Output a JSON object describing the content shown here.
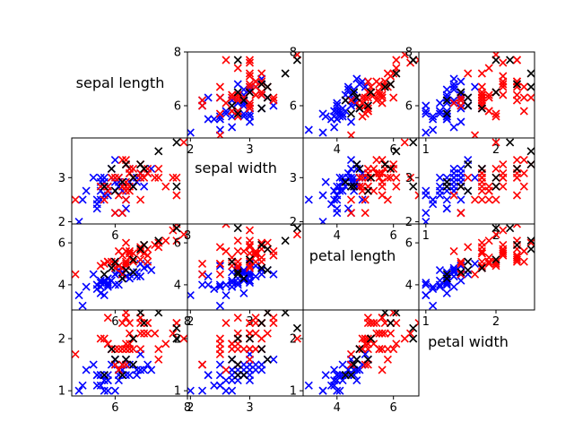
{
  "chart_data": {
    "type": "scatter",
    "layout": "scatter-matrix",
    "variables": [
      "sepal length",
      "sepal width",
      "petal length",
      "petal width"
    ],
    "marker": "x",
    "colors": {
      "group_a": "#0000ff",
      "group_b": "#ff0000",
      "group_c": "#000000"
    },
    "axes": {
      "sepal length": {
        "range": [
          4.8,
          8.0
        ],
        "ticks": [
          6,
          8
        ],
        "tick_labels": [
          "6",
          "8"
        ]
      },
      "sepal width": {
        "range": [
          1.95,
          3.9
        ],
        "ticks": [
          2,
          3
        ],
        "tick_labels": [
          "2",
          "3"
        ]
      },
      "petal length": {
        "range": [
          2.8,
          6.9
        ],
        "ticks": [
          4,
          6
        ],
        "tick_labels": [
          "4",
          "6"
        ]
      },
      "petal width": {
        "range": [
          0.9,
          2.55
        ],
        "ticks": [
          1,
          2
        ],
        "tick_labels": [
          "1",
          "2"
        ]
      }
    },
    "points": {
      "group_a": [
        [
          5.0,
          2.0,
          3.5,
          1.0
        ],
        [
          5.2,
          2.7,
          3.9,
          1.4
        ],
        [
          5.4,
          3.0,
          4.5,
          1.5
        ],
        [
          5.5,
          2.3,
          4.0,
          1.3
        ],
        [
          5.5,
          2.4,
          3.8,
          1.1
        ],
        [
          5.5,
          2.5,
          4.0,
          1.3
        ],
        [
          5.6,
          2.5,
          3.9,
          1.1
        ],
        [
          5.6,
          2.9,
          3.6,
          1.3
        ],
        [
          5.6,
          3.0,
          4.1,
          1.3
        ],
        [
          5.7,
          2.6,
          3.5,
          1.0
        ],
        [
          5.7,
          2.8,
          4.1,
          1.3
        ],
        [
          5.7,
          2.9,
          4.2,
          1.3
        ],
        [
          5.7,
          3.0,
          4.2,
          1.2
        ],
        [
          5.8,
          2.6,
          4.0,
          1.2
        ],
        [
          5.8,
          2.7,
          3.9,
          1.2
        ],
        [
          5.8,
          2.7,
          4.1,
          1.0
        ],
        [
          5.9,
          3.0,
          4.2,
          1.5
        ],
        [
          5.9,
          3.2,
          4.8,
          1.8
        ],
        [
          6.0,
          2.2,
          4.0,
          1.0
        ],
        [
          6.0,
          2.7,
          5.1,
          1.6
        ],
        [
          6.0,
          2.9,
          4.5,
          1.5
        ],
        [
          6.0,
          3.4,
          4.5,
          1.6
        ],
        [
          6.1,
          2.8,
          4.0,
          1.3
        ],
        [
          6.1,
          2.8,
          4.7,
          1.2
        ],
        [
          6.1,
          2.9,
          4.7,
          1.4
        ],
        [
          6.1,
          3.0,
          4.6,
          1.4
        ],
        [
          6.2,
          2.2,
          4.5,
          1.5
        ],
        [
          6.2,
          2.9,
          4.3,
          1.3
        ],
        [
          6.3,
          2.3,
          4.4,
          1.3
        ],
        [
          6.3,
          2.5,
          4.9,
          1.5
        ],
        [
          6.3,
          3.3,
          4.7,
          1.6
        ],
        [
          6.4,
          2.9,
          4.3,
          1.3
        ],
        [
          6.4,
          3.2,
          4.5,
          1.5
        ],
        [
          6.5,
          2.8,
          4.6,
          1.5
        ],
        [
          6.6,
          2.9,
          4.6,
          1.3
        ],
        [
          6.6,
          3.0,
          4.4,
          1.4
        ],
        [
          6.7,
          3.0,
          5.0,
          1.7
        ],
        [
          6.7,
          3.1,
          4.4,
          1.4
        ],
        [
          6.8,
          2.8,
          4.8,
          1.4
        ],
        [
          6.9,
          3.1,
          4.9,
          1.5
        ],
        [
          7.0,
          3.2,
          4.7,
          1.4
        ],
        [
          5.1,
          2.5,
          3.0,
          1.1
        ],
        [
          5.6,
          2.7,
          4.2,
          1.3
        ],
        [
          5.8,
          2.8,
          4.3,
          1.3
        ],
        [
          6.2,
          2.7,
          4.6,
          1.4
        ]
      ],
      "group_b": [
        [
          4.9,
          2.5,
          4.5,
          1.7
        ],
        [
          5.6,
          2.8,
          4.9,
          2.0
        ],
        [
          5.7,
          2.5,
          5.0,
          2.0
        ],
        [
          5.8,
          2.7,
          5.1,
          1.9
        ],
        [
          5.8,
          2.8,
          5.1,
          2.4
        ],
        [
          6.0,
          2.2,
          5.0,
          1.5
        ],
        [
          6.0,
          3.0,
          4.8,
          1.8
        ],
        [
          6.1,
          2.6,
          5.6,
          1.4
        ],
        [
          6.1,
          3.0,
          4.9,
          1.8
        ],
        [
          6.2,
          2.8,
          4.8,
          1.8
        ],
        [
          6.2,
          3.4,
          5.4,
          2.3
        ],
        [
          6.3,
          2.5,
          5.0,
          1.9
        ],
        [
          6.3,
          2.7,
          4.9,
          1.8
        ],
        [
          6.3,
          2.8,
          5.1,
          1.5
        ],
        [
          6.3,
          2.9,
          5.6,
          1.8
        ],
        [
          6.3,
          3.3,
          6.0,
          2.5
        ],
        [
          6.4,
          2.7,
          5.3,
          1.9
        ],
        [
          6.4,
          2.8,
          5.6,
          2.1
        ],
        [
          6.4,
          3.1,
          5.5,
          1.8
        ],
        [
          6.4,
          3.2,
          5.3,
          2.3
        ],
        [
          6.5,
          3.0,
          5.2,
          2.0
        ],
        [
          6.5,
          3.0,
          5.5,
          1.8
        ],
        [
          6.5,
          3.2,
          5.1,
          2.0
        ],
        [
          6.7,
          2.5,
          5.8,
          1.8
        ],
        [
          6.7,
          3.0,
          5.2,
          2.3
        ],
        [
          6.7,
          3.1,
          5.6,
          2.4
        ],
        [
          6.8,
          3.0,
          5.5,
          2.1
        ],
        [
          6.8,
          3.2,
          5.9,
          2.3
        ],
        [
          6.9,
          3.1,
          5.1,
          2.3
        ],
        [
          6.9,
          3.2,
          5.7,
          2.3
        ],
        [
          7.1,
          3.0,
          5.9,
          2.1
        ],
        [
          7.2,
          3.0,
          5.8,
          1.6
        ],
        [
          7.2,
          3.2,
          6.0,
          1.8
        ],
        [
          7.4,
          2.8,
          6.1,
          1.9
        ],
        [
          7.6,
          3.0,
          6.6,
          2.1
        ],
        [
          7.7,
          2.6,
          6.9,
          2.3
        ],
        [
          7.7,
          3.0,
          6.1,
          2.3
        ],
        [
          7.9,
          3.8,
          6.4,
          2.0
        ],
        [
          5.8,
          2.7,
          5.1,
          1.9
        ],
        [
          5.9,
          3.0,
          5.1,
          1.8
        ],
        [
          6.2,
          2.2,
          4.5,
          1.5
        ],
        [
          6.7,
          3.3,
          5.7,
          2.1
        ],
        [
          6.3,
          3.4,
          5.6,
          2.4
        ],
        [
          6.4,
          3.1,
          5.5,
          1.8
        ],
        [
          6.9,
          3.1,
          5.4,
          2.1
        ]
      ],
      "group_c": [
        [
          5.9,
          3.2,
          4.8,
          1.8
        ],
        [
          6.0,
          2.7,
          5.1,
          1.6
        ],
        [
          6.3,
          3.3,
          4.7,
          1.6
        ],
        [
          6.5,
          3.0,
          5.2,
          2.0
        ],
        [
          6.7,
          3.3,
          5.7,
          2.5
        ],
        [
          6.8,
          3.2,
          5.9,
          2.3
        ],
        [
          7.2,
          3.6,
          6.1,
          2.5
        ],
        [
          7.7,
          2.8,
          6.7,
          2.0
        ],
        [
          7.7,
          3.8,
          6.7,
          2.2
        ],
        [
          6.5,
          2.8,
          4.6,
          1.5
        ],
        [
          6.2,
          2.9,
          4.3,
          1.3
        ],
        [
          5.7,
          2.8,
          4.5,
          1.3
        ]
      ]
    }
  }
}
